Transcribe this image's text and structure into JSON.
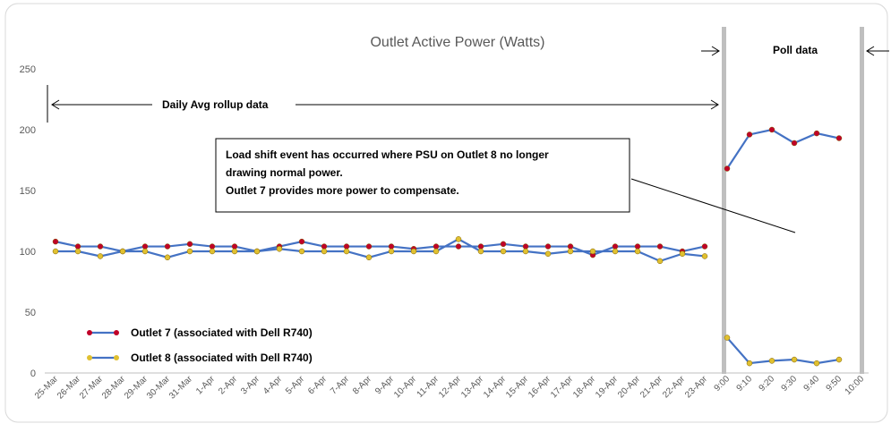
{
  "chart_data": {
    "type": "line",
    "title": "Outlet Active Power (Watts)",
    "categories": [
      "25-Mar",
      "26-Mar",
      "27-Mar",
      "28-Mar",
      "29-Mar",
      "30-Mar",
      "31-Mar",
      "1-Apr",
      "2-Apr",
      "3-Apr",
      "4-Apr",
      "5-Apr",
      "6-Apr",
      "7-Apr",
      "8-Apr",
      "9-Apr",
      "10-Apr",
      "11-Apr",
      "12-Apr",
      "13-Apr",
      "14-Apr",
      "15-Apr",
      "16-Apr",
      "17-Apr",
      "18-Apr",
      "19-Apr",
      "20-Apr",
      "21-Apr",
      "22-Apr",
      "23-Apr",
      "9:00",
      "9:10",
      "9:20",
      "9:30",
      "9:40",
      "9:50",
      "10:00"
    ],
    "series": [
      {
        "name": "Outlet 7 (associated with Dell R740)",
        "color": "#4472c4",
        "marker_color": "#c00028",
        "values": [
          108,
          104,
          104,
          100,
          104,
          104,
          106,
          104,
          104,
          100,
          104,
          108,
          104,
          104,
          104,
          104,
          102,
          104,
          104,
          104,
          106,
          104,
          104,
          104,
          97,
          104,
          104,
          104,
          100,
          104,
          168,
          196,
          200,
          189,
          197,
          193,
          null
        ]
      },
      {
        "name": "Outlet 8 (associated with Dell R740)",
        "color": "#4472c4",
        "marker_color": "#e0c030",
        "values": [
          100,
          100,
          96,
          100,
          100,
          95,
          100,
          100,
          100,
          100,
          102,
          100,
          100,
          100,
          95,
          100,
          100,
          100,
          110,
          100,
          100,
          100,
          98,
          100,
          100,
          100,
          100,
          92,
          98,
          96,
          29,
          8,
          10,
          11,
          8,
          11,
          null
        ]
      }
    ],
    "ylim": [
      0,
      250
    ],
    "yticks": [
      0,
      50,
      100,
      150,
      200,
      250
    ],
    "grid": false,
    "legend": "bottom-left",
    "section_labels": [
      "Daily Avg rollup data",
      "Poll data"
    ],
    "annotation": [
      "Load shift event has occurred where PSU on Outlet 8 no longer",
      "drawing normal power.",
      "Outlet 7 provides more power to compensate."
    ]
  }
}
